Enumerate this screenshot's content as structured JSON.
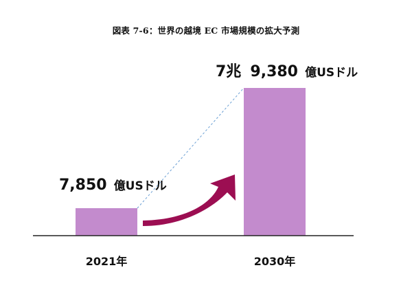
{
  "figure": {
    "title": "図表 7-6：世界の越境 EC 市場規模の拡大予測"
  },
  "chart_data": {
    "type": "bar",
    "title": "図表 7-6：世界の越境 EC 市場規模の拡大予測",
    "categories": [
      "2021年",
      "2030年"
    ],
    "values": [
      7850,
      79380
    ],
    "value_unit": "億USドル",
    "data_labels": [
      {
        "number": "7,850",
        "unit": "億USドル"
      },
      {
        "number": "9,380",
        "prefix": "7兆",
        "unit": "億USドル"
      }
    ],
    "xlabel": "",
    "ylabel": "",
    "grid": false,
    "legend": "none",
    "annotations": [
      "trend-arrow",
      "dashed-connector"
    ],
    "colors": {
      "bar": "#c38bcd",
      "arrow": "#9c0e52",
      "connector": "#6a9fd4",
      "axis": "#222222"
    }
  }
}
